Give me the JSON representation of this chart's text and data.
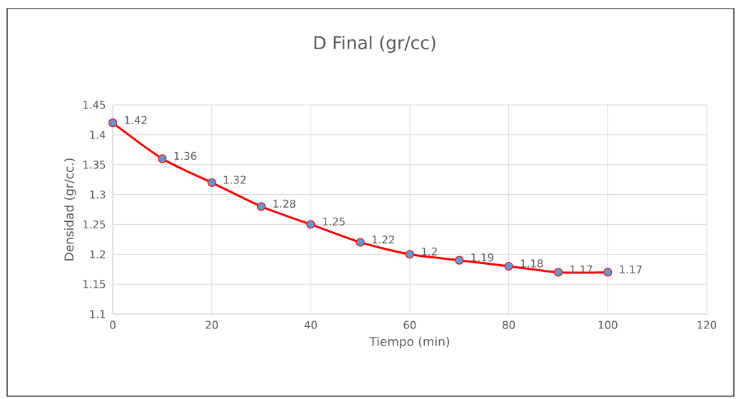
{
  "chart_data": {
    "type": "line",
    "title": "D Final (gr/cc)",
    "xlabel": "Tiempo (min)",
    "ylabel": "Densidad (gr/cc.)",
    "x": [
      0,
      10,
      20,
      30,
      40,
      50,
      60,
      70,
      80,
      90,
      100
    ],
    "series": [
      {
        "color": "#ff0000",
        "values": [
          1.42,
          1.36,
          1.32,
          1.28,
          1.25,
          1.22,
          1.2,
          1.19,
          1.18,
          1.17,
          1.17
        ]
      }
    ],
    "xlim": [
      0,
      120
    ],
    "xticks": [
      0,
      20,
      40,
      60,
      80,
      100,
      120
    ],
    "ylim": [
      1.1,
      1.45
    ],
    "yticks": [
      1.1,
      1.15,
      1.2,
      1.25,
      1.3,
      1.35,
      1.4,
      1.45
    ],
    "grid": true,
    "marker": "circle",
    "line_style": "solid",
    "data_labels": true
  }
}
